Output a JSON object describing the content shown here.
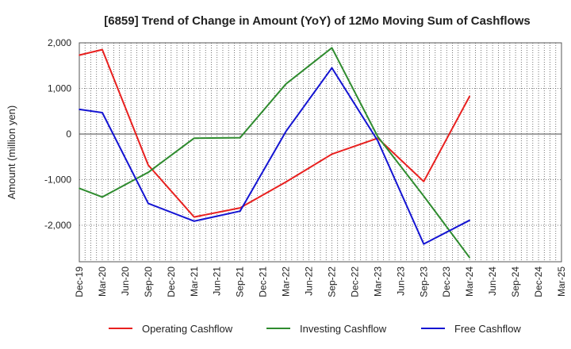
{
  "chart_data": {
    "type": "line",
    "title": "[6859]  Trend of Change in Amount (YoY) of 12Mo Moving Sum of Cashflows",
    "xlabel": "",
    "ylabel": "Amount (million yen)",
    "categories": [
      "Dec-19",
      "Mar-20",
      "Jun-20",
      "Sep-20",
      "Dec-20",
      "Mar-21",
      "Jun-21",
      "Sep-21",
      "Dec-21",
      "Mar-22",
      "Jun-22",
      "Sep-22",
      "Dec-22",
      "Mar-23",
      "Jun-23",
      "Sep-23",
      "Dec-23",
      "Mar-24",
      "Jun-24",
      "Sep-24",
      "Dec-24",
      "Mar-25"
    ],
    "ylim": [
      -2800,
      2000
    ],
    "yticks": [
      2000,
      1000,
      0,
      -1000,
      -2000
    ],
    "ytick_labels": [
      "2,000",
      "1,000",
      "0",
      "-1,000",
      "-2,000"
    ],
    "grid": true,
    "legend_position": "bottom",
    "series": [
      {
        "name": "Operating Cashflow",
        "color": "#e8201f",
        "points": [
          [
            0,
            1730
          ],
          [
            1,
            1850
          ],
          [
            3,
            -680
          ],
          [
            5,
            -1820
          ],
          [
            7,
            -1620
          ],
          [
            9,
            -1050
          ],
          [
            11,
            -440
          ],
          [
            13,
            -90
          ],
          [
            15,
            -1040
          ],
          [
            17,
            830
          ]
        ]
      },
      {
        "name": "Investing Cashflow",
        "color": "#2e8b2e",
        "points": [
          [
            0,
            -1190
          ],
          [
            1,
            -1380
          ],
          [
            3,
            -840
          ],
          [
            5,
            -90
          ],
          [
            7,
            -80
          ],
          [
            9,
            1100
          ],
          [
            11,
            1890
          ],
          [
            13,
            -60
          ],
          [
            15,
            -1360
          ],
          [
            17,
            -2710
          ]
        ]
      },
      {
        "name": "Free Cashflow",
        "color": "#1414d2",
        "points": [
          [
            0,
            540
          ],
          [
            1,
            470
          ],
          [
            3,
            -1520
          ],
          [
            5,
            -1910
          ],
          [
            7,
            -1690
          ],
          [
            9,
            60
          ],
          [
            11,
            1450
          ],
          [
            13,
            -150
          ],
          [
            15,
            -2410
          ],
          [
            17,
            -1890
          ]
        ]
      }
    ]
  }
}
